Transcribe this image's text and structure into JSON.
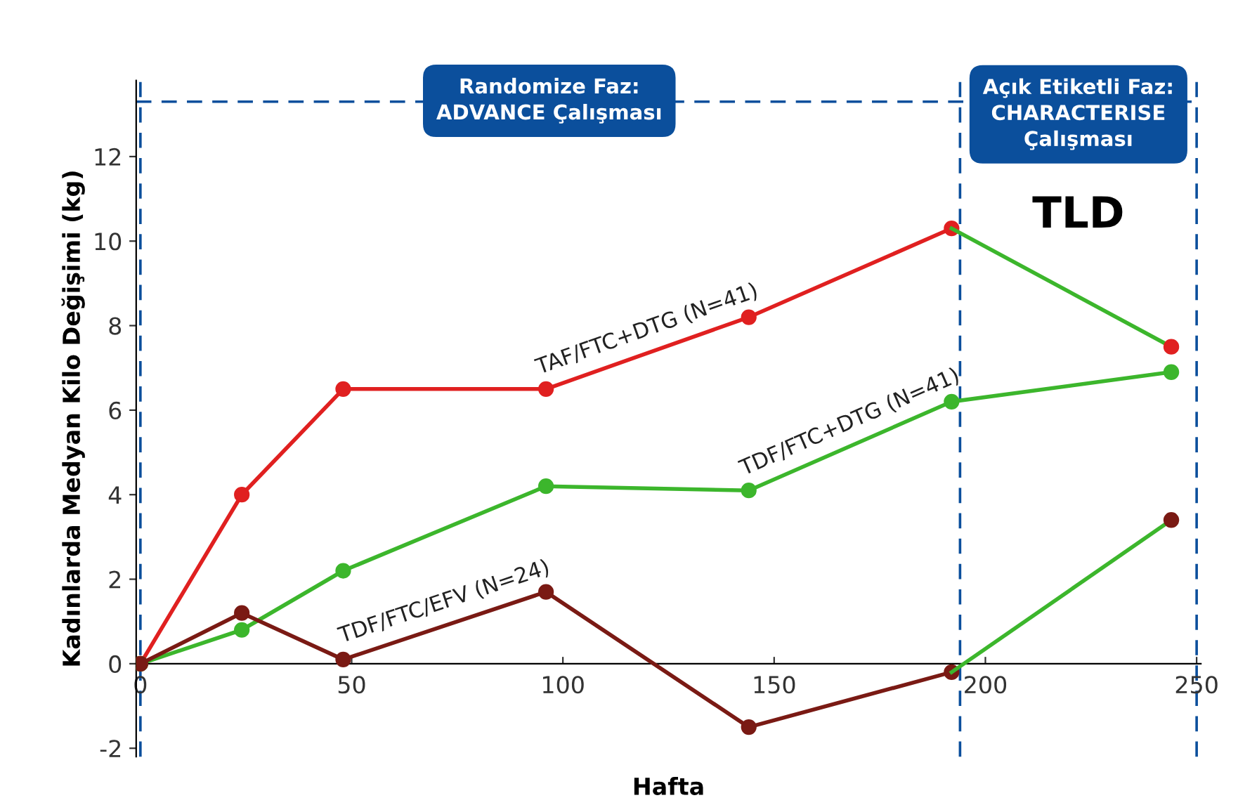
{
  "chart_data": {
    "type": "line",
    "xlabel": "Hafta",
    "ylabel": "Kadınlarda Medyan Kilo Değişimi (kg)",
    "xlim": [
      -1,
      251
    ],
    "ylim": [
      -2.2,
      13.8
    ],
    "xticks": [
      0,
      50,
      100,
      150,
      200,
      250
    ],
    "yticks": [
      -2,
      0,
      2,
      4,
      6,
      8,
      10,
      12
    ],
    "grid": false,
    "marker": "circle",
    "line_style": "solid",
    "series": [
      {
        "name": "TAF/FTC+DTG (N=41)",
        "color": "#e02020",
        "x": [
          0,
          24,
          48,
          96,
          144,
          192
        ],
        "values": [
          0,
          4.0,
          6.5,
          6.5,
          8.2,
          10.3
        ]
      },
      {
        "name": "TDF/FTC+DTG (N=41)",
        "color": "#3cb62c",
        "x": [
          0,
          24,
          48,
          96,
          144,
          192
        ],
        "values": [
          0,
          0.8,
          2.2,
          4.2,
          4.1,
          6.2
        ]
      },
      {
        "name": "TDF/FTC/EFV (N=24)",
        "color": "#7a1a14",
        "x": [
          0,
          24,
          48,
          96,
          144,
          192
        ],
        "values": [
          0,
          1.2,
          0.1,
          1.7,
          -1.5,
          -0.2
        ]
      },
      {
        "type": "line",
        "marker": "none",
        "color": "#3cb62c",
        "x": [
          192,
          244
        ],
        "values": [
          10.3,
          7.5
        ]
      },
      {
        "type": "line",
        "marker": "none",
        "color": "#3cb62c",
        "x": [
          192,
          244
        ],
        "values": [
          6.2,
          6.9
        ]
      },
      {
        "type": "line",
        "marker": "none",
        "color": "#3cb62c",
        "x": [
          192,
          244
        ],
        "values": [
          -0.2,
          3.4
        ]
      },
      {
        "type": "scatter",
        "colors": [
          "#e02020",
          "#3cb62c",
          "#7a1a14"
        ],
        "x": [
          244,
          244,
          244
        ],
        "values": [
          7.5,
          6.9,
          3.4
        ]
      }
    ],
    "ref_lines": [
      {
        "axis": "x",
        "value": 0,
        "color": "#0b4f9c",
        "line_style": "dashed"
      },
      {
        "axis": "x",
        "value": 194,
        "color": "#0b4f9c",
        "line_style": "dashed"
      },
      {
        "axis": "x",
        "value": 250,
        "color": "#0b4f9c",
        "line_style": "dashed"
      },
      {
        "axis": "y",
        "value": 13.3,
        "color": "#0b4f9c",
        "line_style": "dashed"
      }
    ],
    "annotations": [
      "Randomize Faz:\nADVANCE Çalışması",
      "Açık Etiketli Faz:\nCHARACTERISE\nÇalışması",
      "TLD"
    ]
  }
}
